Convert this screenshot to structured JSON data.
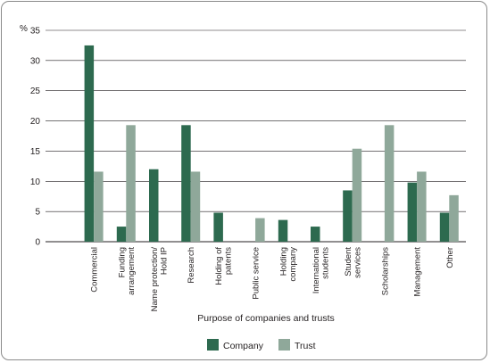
{
  "chart_data": {
    "type": "bar",
    "title": "",
    "xlabel": "Purpose of companies and trusts",
    "ylabel": "%",
    "ylim": [
      0,
      35
    ],
    "yticks": [
      0,
      5,
      10,
      15,
      20,
      25,
      30,
      35
    ],
    "grid": "horizontal",
    "legend": "bottom",
    "categories": [
      [
        "Commercial"
      ],
      [
        "Funding",
        "arrangement"
      ],
      [
        "Name protection/",
        "Hold IP"
      ],
      [
        "Research"
      ],
      [
        "Holding of",
        "patents"
      ],
      [
        "Public service"
      ],
      [
        "Holding",
        "company"
      ],
      [
        "International",
        "students"
      ],
      [
        "Student",
        "services"
      ],
      [
        "Scholarships"
      ],
      [
        "Management"
      ],
      [
        "Other"
      ]
    ],
    "series": [
      {
        "name": "Company",
        "color": "#2d6a4f",
        "values": [
          32.5,
          2.5,
          12,
          19.3,
          4.8,
          0,
          3.6,
          2.5,
          8.5,
          0,
          9.8,
          4.8
        ]
      },
      {
        "name": "Trust",
        "color": "#8fa89a",
        "values": [
          11.6,
          19.3,
          0,
          11.6,
          0,
          3.9,
          0,
          0,
          15.4,
          19.3,
          11.6,
          7.7
        ]
      }
    ]
  }
}
